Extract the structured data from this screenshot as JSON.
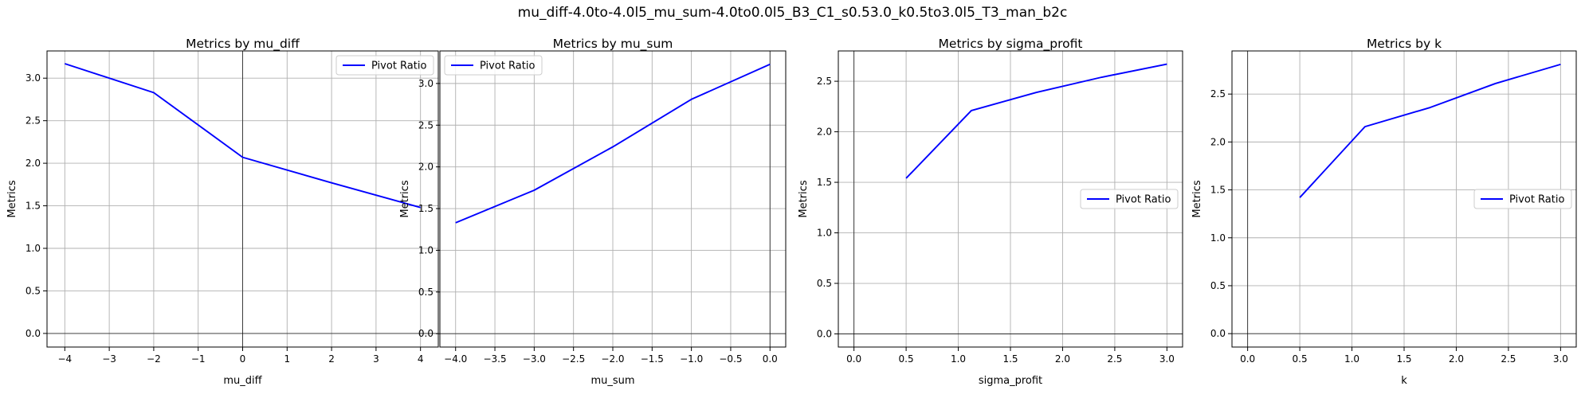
{
  "figure": {
    "suptitle": "mu_diff-4.0to-4.0l5_mu_sum-4.0to0.0l5_B3_C1_s0.53.0_k0.5to3.0l5_T3_man_b2c"
  },
  "colors": {
    "line": "#0000ff",
    "grid": "#b0b0b0",
    "zero": "#000000"
  },
  "chart_data": [
    {
      "type": "line",
      "title": "Metrics by mu_diff",
      "xlabel": "mu_diff",
      "ylabel": "Metrics",
      "xlim": [
        -4.4,
        4.4
      ],
      "ylim": [
        -0.16,
        3.32
      ],
      "xticks": [
        -4,
        -3,
        -2,
        -1,
        0,
        1,
        2,
        3,
        4
      ],
      "xtick_labels": [
        "−4",
        "−3",
        "−2",
        "−1",
        "0",
        "1",
        "2",
        "3",
        "4"
      ],
      "yticks": [
        0,
        0.5,
        1,
        1.5,
        2,
        2.5,
        3
      ],
      "ytick_labels": [
        "0.0",
        "0.5",
        "1.0",
        "1.5",
        "2.0",
        "2.5",
        "3.0"
      ],
      "grid": true,
      "legend": "upper right",
      "series": [
        {
          "name": "Pivot Ratio",
          "x": [
            -4,
            -2,
            0,
            2,
            4
          ],
          "y": [
            3.17,
            2.83,
            2.07,
            1.77,
            1.48
          ]
        }
      ]
    },
    {
      "type": "line",
      "title": "Metrics by mu_sum",
      "xlabel": "mu_sum",
      "ylabel": "Metrics",
      "xlim": [
        -4.2,
        0.2
      ],
      "ylim": [
        -0.16,
        3.39
      ],
      "xticks": [
        -4,
        -3.5,
        -3,
        -2.5,
        -2,
        -1.5,
        -1,
        -0.5,
        0
      ],
      "xtick_labels": [
        "−4.0",
        "−3.5",
        "−3.0",
        "−2.5",
        "−2.0",
        "−1.5",
        "−1.0",
        "−0.5",
        "0.0"
      ],
      "yticks": [
        0,
        0.5,
        1,
        1.5,
        2,
        2.5,
        3
      ],
      "ytick_labels": [
        "0.0",
        "0.5",
        "1.0",
        "1.5",
        "2.0",
        "2.5",
        "3.0"
      ],
      "grid": true,
      "legend": "upper left",
      "series": [
        {
          "name": "Pivot Ratio",
          "x": [
            -4,
            -3,
            -2,
            -1,
            0
          ],
          "y": [
            1.33,
            1.72,
            2.24,
            2.81,
            3.23
          ]
        }
      ]
    },
    {
      "type": "line",
      "title": "Metrics by sigma_profit",
      "xlabel": "sigma_profit",
      "ylabel": "Metrics",
      "xlim": [
        -0.15,
        3.15
      ],
      "ylim": [
        -0.13,
        2.8
      ],
      "xticks": [
        0,
        0.5,
        1,
        1.5,
        2,
        2.5,
        3
      ],
      "xtick_labels": [
        "0.0",
        "0.5",
        "1.0",
        "1.5",
        "2.0",
        "2.5",
        "3.0"
      ],
      "yticks": [
        0,
        0.5,
        1,
        1.5,
        2,
        2.5
      ],
      "ytick_labels": [
        "0.0",
        "0.5",
        "1.0",
        "1.5",
        "2.0",
        "2.5"
      ],
      "grid": true,
      "legend": "center right",
      "series": [
        {
          "name": "Pivot Ratio",
          "x": [
            0.5,
            1.125,
            1.75,
            2.375,
            3.0
          ],
          "y": [
            1.54,
            2.21,
            2.39,
            2.54,
            2.67
          ]
        }
      ]
    },
    {
      "type": "line",
      "title": "Metrics by k",
      "xlabel": "k",
      "ylabel": "Metrics",
      "xlim": [
        -0.15,
        3.15
      ],
      "ylim": [
        -0.14,
        2.95
      ],
      "xticks": [
        0,
        0.5,
        1,
        1.5,
        2,
        2.5,
        3
      ],
      "xtick_labels": [
        "0.0",
        "0.5",
        "1.0",
        "1.5",
        "2.0",
        "2.5",
        "3.0"
      ],
      "yticks": [
        0,
        0.5,
        1,
        1.5,
        2,
        2.5
      ],
      "ytick_labels": [
        "0.0",
        "0.5",
        "1.0",
        "1.5",
        "2.0",
        "2.5"
      ],
      "grid": true,
      "legend": "center right",
      "series": [
        {
          "name": "Pivot Ratio",
          "x": [
            0.5,
            1.125,
            1.75,
            2.375,
            3.0
          ],
          "y": [
            1.42,
            2.16,
            2.36,
            2.61,
            2.81
          ]
        }
      ]
    }
  ]
}
